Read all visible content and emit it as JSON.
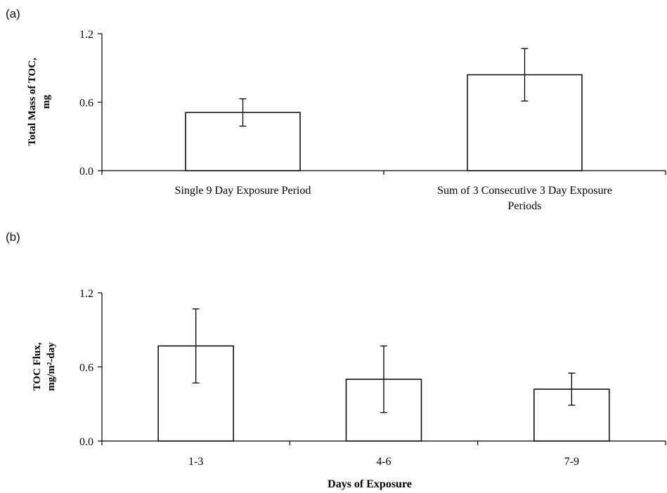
{
  "chart_data": [
    {
      "panel": "(a)",
      "type": "bar",
      "ylabel": "Total Mass of TOC, mg",
      "ylabel_lines": [
        "Total Mass of TOC,",
        "mg"
      ],
      "xlabel": "",
      "ylim": [
        0,
        1.2
      ],
      "yticks": [
        "0.0",
        "0.6",
        "1.2"
      ],
      "categories": [
        "Single 9 Day Exposure Period",
        "Sum of 3 Consecutive 3 Day Exposure Periods"
      ],
      "category_lines": [
        [
          "Single 9 Day Exposure Period"
        ],
        [
          "Sum of 3 Consecutive 3 Day Exposure",
          "Periods"
        ]
      ],
      "values": [
        0.51,
        0.84
      ],
      "errors": [
        0.12,
        0.23
      ],
      "grid": false,
      "bar_fill": "#ffffff",
      "bar_stroke": "#000000"
    },
    {
      "panel": "(b)",
      "type": "bar",
      "ylabel": "TOC Flux, mg/m²-day",
      "ylabel_lines": [
        "TOC Flux,",
        "mg/m²-day"
      ],
      "xlabel": "Days of Exposure",
      "ylim": [
        0,
        1.2
      ],
      "yticks": [
        "0.0",
        "0.6",
        "1.2"
      ],
      "categories": [
        "1-3",
        "4-6",
        "7-9"
      ],
      "category_lines": [
        [
          "1-3"
        ],
        [
          "4-6"
        ],
        [
          "7-9"
        ]
      ],
      "values": [
        0.77,
        0.5,
        0.42
      ],
      "errors": [
        0.3,
        0.27,
        0.13
      ],
      "grid": false,
      "bar_fill": "#ffffff",
      "bar_stroke": "#000000"
    }
  ]
}
